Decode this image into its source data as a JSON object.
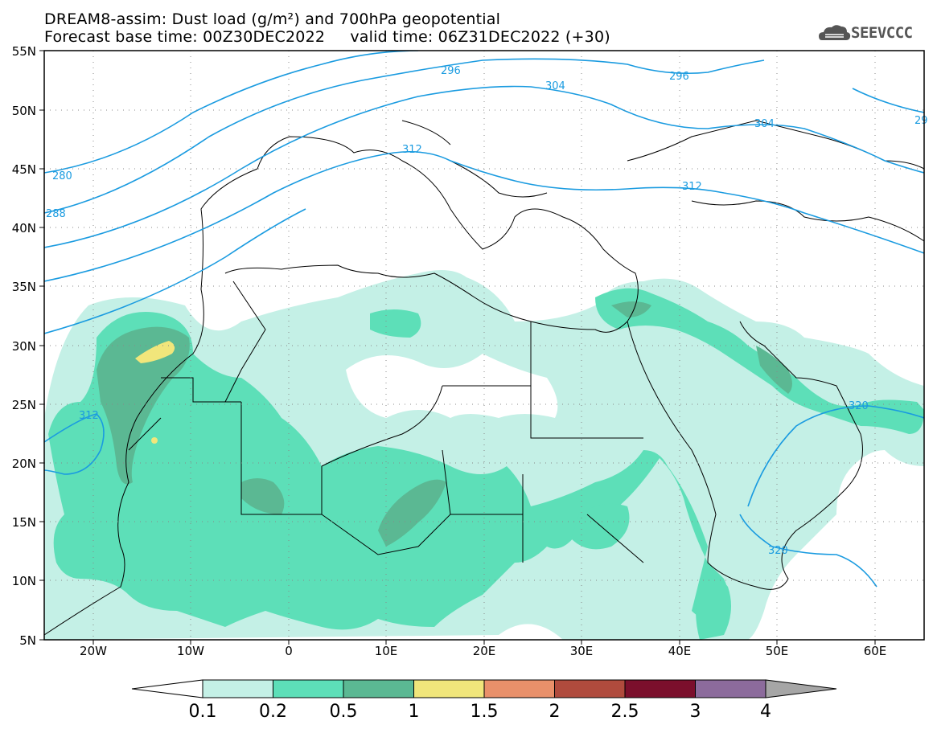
{
  "header": {
    "title_line1": "DREAM8-assim: Dust load (g/m²) and 700hPa geopotential",
    "title_line2": "Forecast base time: 00Z30DEC2022     valid time: 06Z31DEC2022 (+30)",
    "logo_text": "SEEVCCC"
  },
  "map": {
    "lat_labels": [
      "55N",
      "50N",
      "45N",
      "40N",
      "35N",
      "30N",
      "25N",
      "20N",
      "15N",
      "10N",
      "5N"
    ],
    "lon_labels": [
      "20W",
      "10W",
      "0",
      "10E",
      "20E",
      "30E",
      "40E",
      "50E",
      "60E"
    ],
    "contour_labels": [
      "296",
      "296",
      "304",
      "304",
      "312",
      "312",
      "280",
      "288",
      "312",
      "320",
      "320",
      "29"
    ],
    "colors": {
      "contour": "#1a9be0",
      "dust_0_1": "#c4f0e6",
      "dust_0_2": "#5ddfb8",
      "dust_0_5": "#5bb893",
      "dust_1": "#f1e67b"
    }
  },
  "colorbar": {
    "labels": [
      "0.1",
      "0.2",
      "0.5",
      "1",
      "1.5",
      "2",
      "2.5",
      "3",
      "4"
    ],
    "colors": [
      "#c4f0e6",
      "#5ddfb8",
      "#5bb893",
      "#f1e67b",
      "#e9906a",
      "#b04b3d",
      "#7b0f2c",
      "#8c6b9c"
    ],
    "left_end_color": "#ffffff",
    "right_end_color": "#a6a6a6"
  }
}
